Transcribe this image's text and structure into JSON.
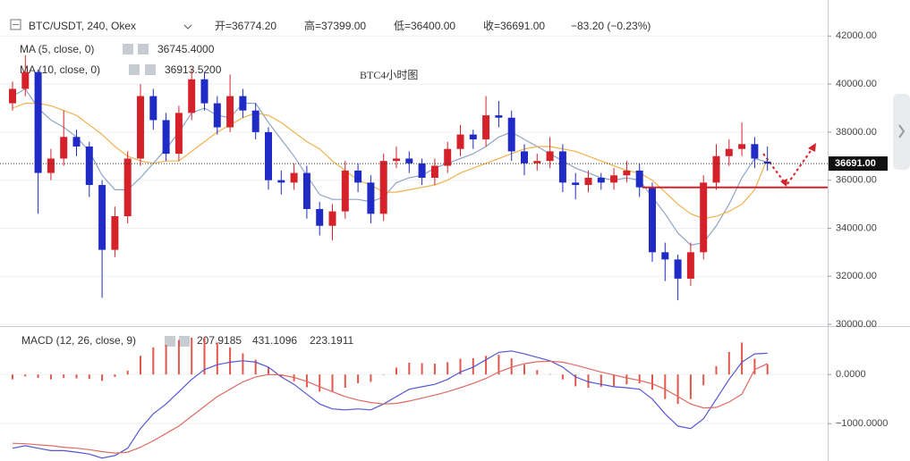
{
  "chart_data": [
    {
      "type": "candlestick",
      "symbol": "BTC/USDT, 240, Okex",
      "ohlc_labels": [
        "开=36774.20",
        "高=37399.00",
        "低=36400.00",
        "收=36691.00",
        "−83.20 (−0.23%)"
      ],
      "annotation": "BTC4小时图",
      "up_color": "#d5212a",
      "down_color": "#1f2bc4",
      "open": [
        39200,
        39800,
        40500,
        36300,
        36900,
        37800,
        37400,
        35800,
        33100,
        34500,
        36900,
        39500,
        38500,
        37100,
        38800,
        40200,
        39200,
        38200,
        39500,
        38900,
        38000,
        36000,
        35900,
        36300,
        34800,
        34100,
        34700,
        36400,
        35900,
        34600,
        36800,
        36900,
        36700,
        36100,
        36600,
        37300,
        37900,
        37700,
        38700,
        38600,
        37200,
        36700,
        36800,
        37200,
        35900,
        35800,
        36100,
        35900,
        36200,
        36400,
        35700,
        33000,
        32700,
        31900,
        33000,
        35900,
        37000,
        37300,
        37500,
        36774.2
      ],
      "high": [
        40100,
        41200,
        40600,
        37300,
        38900,
        38100,
        37600,
        36000,
        34900,
        37200,
        40000,
        39800,
        38800,
        39100,
        40600,
        40500,
        39500,
        40400,
        39800,
        39200,
        38200,
        36400,
        36700,
        36600,
        35100,
        35000,
        36800,
        36700,
        36200,
        37100,
        37400,
        37200,
        36900,
        36900,
        37600,
        38300,
        38100,
        39500,
        39300,
        38900,
        37500,
        37100,
        37800,
        37500,
        36300,
        36400,
        36300,
        36500,
        36800,
        36700,
        35900,
        33400,
        32900,
        33400,
        36200,
        37500,
        37700,
        38400,
        37800,
        37399
      ],
      "low": [
        38900,
        39500,
        34600,
        36000,
        36600,
        37000,
        35300,
        31100,
        32800,
        34200,
        36600,
        38100,
        36800,
        36800,
        38500,
        38900,
        37900,
        38000,
        38600,
        37700,
        35600,
        35400,
        35600,
        34400,
        33700,
        33500,
        34400,
        35500,
        34200,
        34300,
        36500,
        36300,
        35800,
        35800,
        36300,
        37000,
        37300,
        37400,
        38200,
        36800,
        36200,
        36400,
        36500,
        35500,
        35200,
        35500,
        35600,
        35600,
        35900,
        35300,
        32600,
        31800,
        31000,
        31600,
        32700,
        35600,
        36600,
        37000,
        36500,
        36400
      ],
      "close": [
        39800,
        40500,
        36300,
        36900,
        37800,
        37400,
        35800,
        33100,
        34500,
        36900,
        39500,
        38500,
        37100,
        38800,
        40200,
        39200,
        38200,
        39500,
        38900,
        38000,
        36000,
        35900,
        36300,
        34800,
        34100,
        34700,
        36400,
        35900,
        34600,
        36800,
        36900,
        36700,
        36100,
        36600,
        37300,
        37900,
        37700,
        38700,
        38600,
        37200,
        36700,
        36800,
        37200,
        35900,
        35800,
        36100,
        35900,
        36200,
        36400,
        35700,
        33000,
        32700,
        31900,
        33000,
        35900,
        37000,
        37300,
        37500,
        36900,
        36691
      ],
      "series": [
        {
          "name": "MA (5, close, 0)",
          "value_label": "36745.4000",
          "color": "#8ea3c8",
          "values": [
            39500,
            39800,
            39000,
            38500,
            38200,
            37800,
            37200,
            36200,
            35600,
            35600,
            36100,
            36700,
            37300,
            38000,
            38800,
            39000,
            38700,
            38600,
            39200,
            39200,
            38400,
            37700,
            37000,
            36200,
            35400,
            35200,
            35200,
            35200,
            35100,
            35300,
            35900,
            36100,
            36200,
            36500,
            36700,
            36900,
            37100,
            37400,
            37800,
            38000,
            37700,
            37400,
            37100,
            36800,
            36500,
            36300,
            36100,
            36000,
            36100,
            36000,
            35300,
            34600,
            33800,
            33300,
            33400,
            34100,
            35000,
            36100,
            36900,
            36745.4
          ]
        },
        {
          "name": "MA (10, close, 0)",
          "value_label": "36913.5200",
          "color": "#f0b24e",
          "values": [
            39000,
            39200,
            39200,
            39100,
            38900,
            38700,
            38300,
            37900,
            37400,
            37000,
            36800,
            36700,
            36800,
            36800,
            37200,
            37600,
            38000,
            38300,
            38600,
            38800,
            38700,
            38400,
            38000,
            37600,
            37300,
            36800,
            36400,
            36000,
            35800,
            35500,
            35500,
            35600,
            35700,
            35800,
            36000,
            36300,
            36500,
            36700,
            36900,
            37100,
            37300,
            37400,
            37400,
            37300,
            37200,
            37000,
            36800,
            36600,
            36400,
            36300,
            36000,
            35500,
            35000,
            34600,
            34400,
            34500,
            34700,
            35000,
            35600,
            36913.52
          ]
        }
      ],
      "last_price_label": "36691.00",
      "support_level": 35700,
      "support_color": "#d5212a",
      "ylim": [
        30000,
        43500
      ],
      "yticks": [
        {
          "value": 30000,
          "label": "30000.00"
        },
        {
          "value": 32000,
          "label": "32000.00"
        },
        {
          "value": 34000,
          "label": "34000.00"
        },
        {
          "value": 36000,
          "label": "36000.00"
        },
        {
          "value": 38000,
          "label": "38000.00"
        },
        {
          "value": 40000,
          "label": "40000.00"
        },
        {
          "value": 42000,
          "label": "42000.00"
        }
      ],
      "grid": true
    },
    {
      "type": "macd",
      "title": "MACD (12, 26, close, 9)",
      "histogram": {
        "value_label": "207.9185",
        "color": "#e2574c",
        "values": [
          -100,
          -40,
          -70,
          -100,
          -70,
          -80,
          -90,
          -130,
          -50,
          80,
          380,
          550,
          600,
          700,
          750,
          750,
          650,
          550,
          430,
          300,
          150,
          -40,
          -140,
          -260,
          -350,
          -350,
          -270,
          -180,
          -150,
          0,
          140,
          240,
          230,
          220,
          250,
          320,
          330,
          380,
          400,
          330,
          200,
          90,
          10,
          -100,
          -240,
          -270,
          -250,
          -240,
          -200,
          -180,
          -310,
          -500,
          -600,
          -500,
          -220,
          170,
          460,
          650,
          320,
          207.9185
        ]
      },
      "series": [
        {
          "name": "DIF",
          "value_label": "431.1096",
          "color": "#5457d4",
          "values": [
            -1500,
            -1450,
            -1500,
            -1550,
            -1550,
            -1580,
            -1620,
            -1700,
            -1650,
            -1500,
            -1100,
            -800,
            -600,
            -350,
            -100,
            100,
            200,
            250,
            280,
            250,
            150,
            -50,
            -200,
            -400,
            -600,
            -700,
            -720,
            -700,
            -720,
            -600,
            -450,
            -300,
            -250,
            -200,
            -100,
            50,
            150,
            300,
            450,
            480,
            420,
            350,
            280,
            150,
            -50,
            -150,
            -200,
            -250,
            -270,
            -300,
            -500,
            -800,
            -1050,
            -1100,
            -900,
            -500,
            -100,
            250,
            420,
            431.1096
          ]
        },
        {
          "name": "DEA",
          "value_label": "223.1911",
          "color": "#e06a62",
          "values": [
            -1400,
            -1410,
            -1430,
            -1450,
            -1480,
            -1500,
            -1530,
            -1570,
            -1600,
            -1580,
            -1480,
            -1350,
            -1200,
            -1050,
            -850,
            -650,
            -450,
            -300,
            -150,
            -50,
            0,
            -10,
            -60,
            -140,
            -250,
            -350,
            -450,
            -520,
            -570,
            -600,
            -590,
            -540,
            -480,
            -420,
            -350,
            -270,
            -180,
            -80,
            50,
            150,
            220,
            260,
            270,
            250,
            190,
            120,
            50,
            -10,
            -70,
            -120,
            -190,
            -300,
            -450,
            -600,
            -680,
            -670,
            -560,
            -400,
            100,
            223.1911
          ]
        }
      ],
      "ylim": [
        -1760,
        930
      ],
      "yticks": [
        {
          "value": -1000,
          "label": "−1000.0000"
        },
        {
          "value": 0,
          "label": "0.0000"
        }
      ],
      "grid": true
    }
  ]
}
